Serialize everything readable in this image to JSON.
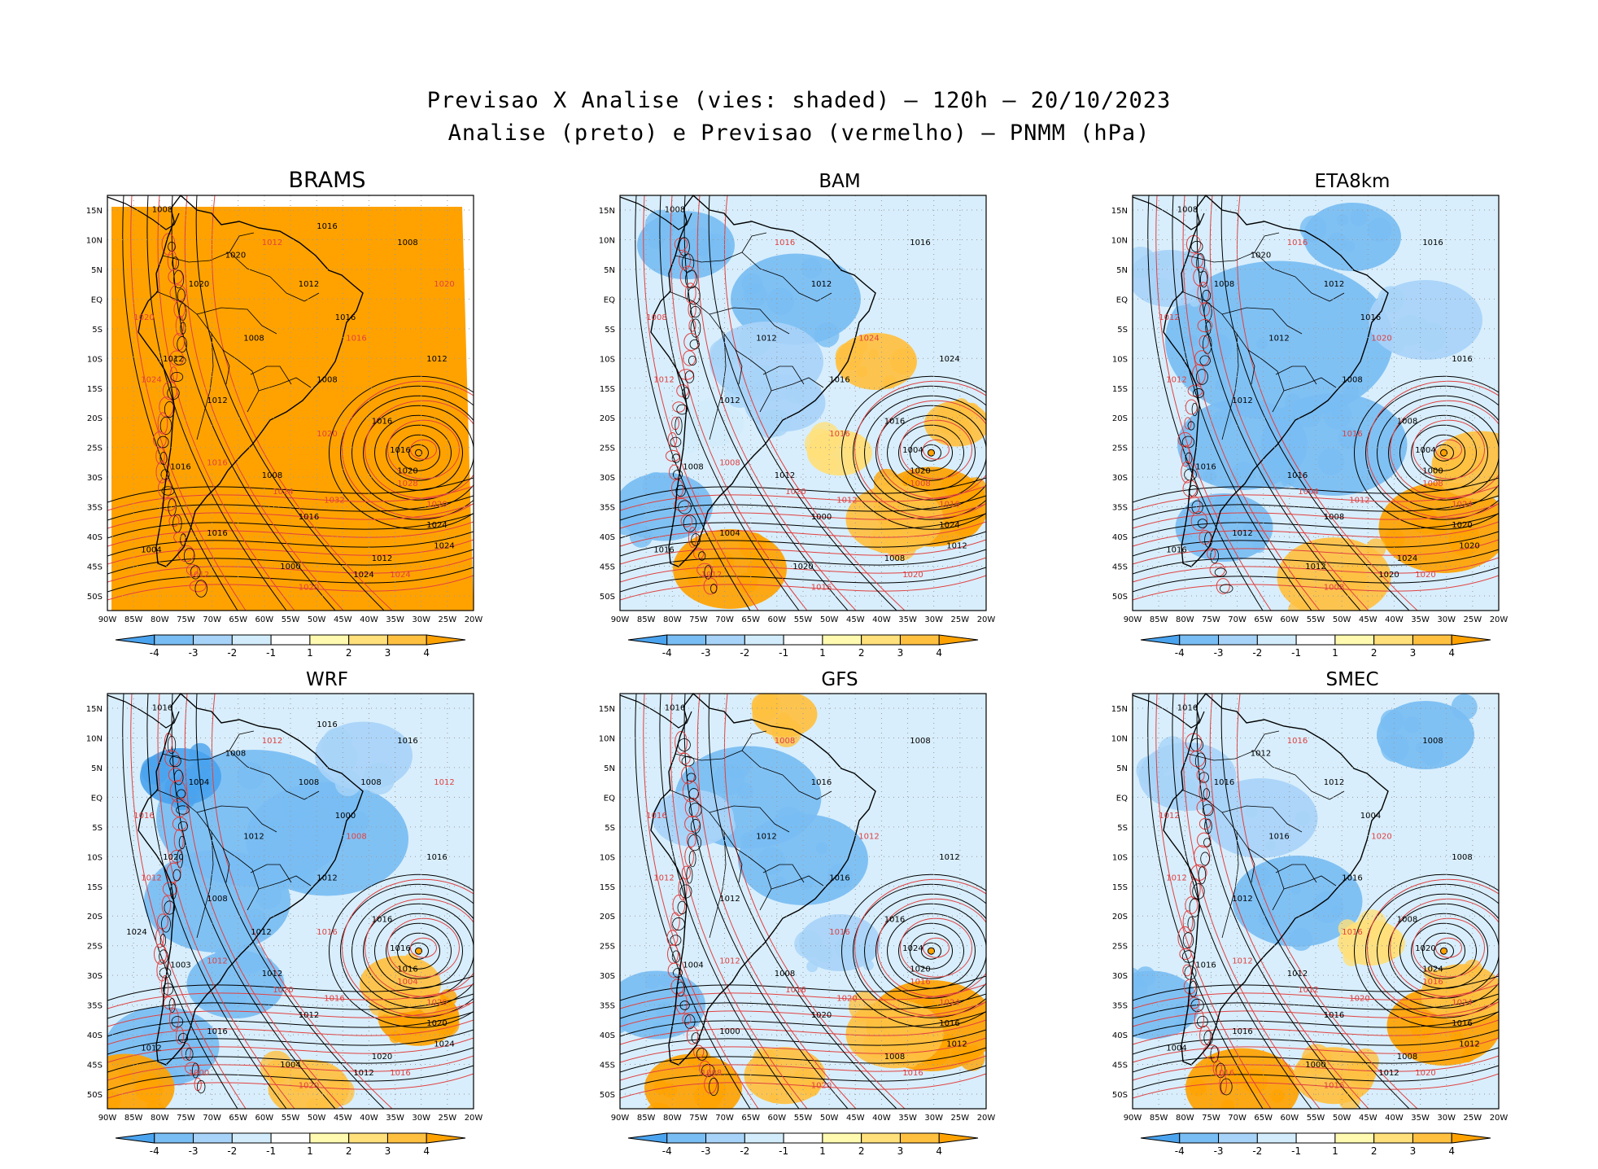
{
  "title_line1": "Previsao X Analise (vies: shaded) – 120h – 20/10/2023",
  "title_line2": "Analise (preto) e Previsao (vermelho) – PNMM (hPa)",
  "colorbar": {
    "labels": [
      "-4",
      "-3",
      "-2",
      "-1",
      "1",
      "2",
      "3",
      "4"
    ],
    "colors": [
      "#4aa3ee",
      "#78bdf3",
      "#a8d3f8",
      "#d2ecfb",
      "#ffffff",
      "#fffab0",
      "#ffe07a",
      "#ffc040",
      "#ffa200"
    ]
  },
  "axes": {
    "lon_labels": [
      "90W",
      "85W",
      "80W",
      "75W",
      "70W",
      "65W",
      "60W",
      "55W",
      "50W",
      "45W",
      "40W",
      "35W",
      "30W",
      "25W",
      "20W"
    ],
    "lat_labels": [
      "15N",
      "10N",
      "5N",
      "EQ",
      "5S",
      "10S",
      "15S",
      "20S",
      "25S",
      "30S",
      "35S",
      "40S",
      "45S",
      "50S"
    ]
  },
  "panels": [
    {
      "id": "brams",
      "name": "BRAMS",
      "black_labels": [
        "1008",
        "1008",
        "1012",
        "1008",
        "1008",
        "1012",
        "1016",
        "1012",
        "1008",
        "1016",
        "1016",
        "1016",
        "1016",
        "1020",
        "1024",
        "1024",
        "1012",
        "1004",
        "1000",
        "1016",
        "1020",
        "1020",
        "1024",
        "1016",
        "1012"
      ],
      "red_labels": [
        "1020",
        "1024",
        "1012",
        "1016",
        "1020",
        "1024",
        "1032",
        "1028",
        "1020",
        "1024",
        "1020",
        "1016",
        "1012",
        "1020"
      ]
    },
    {
      "id": "bam",
      "name": "BAM",
      "black_labels": [
        "1008",
        "1016",
        "1012",
        "1012",
        "1016",
        "1012",
        "1016",
        "1024",
        "1012",
        "1008",
        "1004",
        "1000",
        "1004",
        "1020",
        "1024",
        "1012",
        "1008",
        "1016",
        "1020"
      ],
      "red_labels": [
        "1008",
        "1012",
        "1016",
        "1024",
        "1016",
        "1020",
        "1012",
        "1008",
        "1016",
        "1020",
        "1016",
        "1008",
        "1012"
      ]
    },
    {
      "id": "eta8km",
      "name": "ETA8km",
      "black_labels": [
        "1008",
        "1016",
        "1012",
        "1012",
        "1008",
        "1012",
        "1008",
        "1016",
        "1016",
        "1016",
        "1012",
        "1008",
        "1004",
        "1000",
        "1020",
        "1020",
        "1024",
        "1016",
        "1012",
        "1016",
        "1008",
        "1020",
        "1020"
      ],
      "red_labels": [
        "1012",
        "1012",
        "1016",
        "1020",
        "1016",
        "1004",
        "1012",
        "1008",
        "1024",
        "1020",
        "1008"
      ]
    },
    {
      "id": "wrf",
      "name": "WRF",
      "black_labels": [
        "1016",
        "1016",
        "1008",
        "1012",
        "1012",
        "1008",
        "1016",
        "1016",
        "1012",
        "1003",
        "1016",
        "1012",
        "1016",
        "1016",
        "1020",
        "1024",
        "1020",
        "1012",
        "1004",
        "1000",
        "1004",
        "1008",
        "1012",
        "1016",
        "1020",
        "1024",
        "1012",
        "1008"
      ],
      "red_labels": [
        "1016",
        "1012",
        "1012",
        "1008",
        "1016",
        "1020",
        "1016",
        "1004",
        "1020",
        "1016",
        "1020",
        "1012",
        "1000",
        "1012"
      ]
    },
    {
      "id": "gfs",
      "name": "GFS",
      "black_labels": [
        "1016",
        "1008",
        "1016",
        "1012",
        "1016",
        "1012",
        "1016",
        "1012",
        "1008",
        "1004",
        "1000",
        "1020",
        "1024",
        "1020",
        "1016",
        "1012",
        "1008"
      ],
      "red_labels": [
        "1016",
        "1012",
        "1008",
        "1012",
        "1016",
        "1016",
        "1020",
        "1016",
        "1024",
        "1016",
        "1020",
        "1012",
        "1008"
      ]
    },
    {
      "id": "smec",
      "name": "SMEC",
      "black_labels": [
        "1016",
        "1008",
        "1012",
        "1016",
        "1016",
        "1012",
        "1008",
        "1008",
        "1012",
        "1016",
        "1016",
        "1016",
        "1020",
        "1024",
        "1016",
        "1012",
        "1008",
        "1004",
        "1000",
        "1004",
        "1016",
        "1012",
        "1012"
      ],
      "red_labels": [
        "1012",
        "1012",
        "1016",
        "1020",
        "1016",
        "1012",
        "1020",
        "1016",
        "1024",
        "1020",
        "1016",
        "1012",
        "1016"
      ]
    }
  ]
}
